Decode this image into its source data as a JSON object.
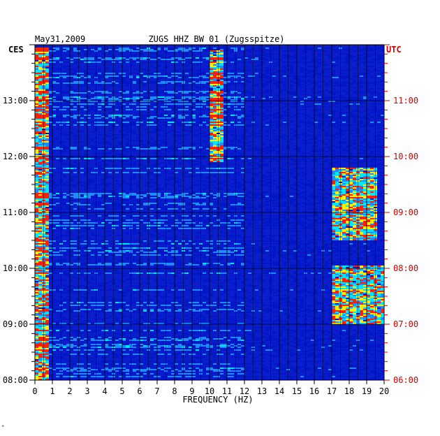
{
  "chart_data": {
    "type": "heatmap",
    "title": "ZUGS HHZ BW 01 (Zugsspitze)",
    "date": "May31,2009",
    "xlabel": "FREQUENCY (HZ)",
    "left_axis_label": "CES",
    "right_axis_label": "UTC",
    "xlim": [
      0,
      20
    ],
    "x_ticks": [
      "0",
      "1",
      "2",
      "3",
      "4",
      "5",
      "6",
      "7",
      "8",
      "9",
      "10",
      "11",
      "12",
      "13",
      "14",
      "15",
      "16",
      "17",
      "18",
      "19",
      "20"
    ],
    "left_ticks": [
      {
        "t": 13,
        "label": "13:00"
      },
      {
        "t": 12,
        "label": "12:00"
      },
      {
        "t": 11,
        "label": "11:00"
      },
      {
        "t": 10,
        "label": "10:00"
      },
      {
        "t": 9,
        "label": "09:00"
      },
      {
        "t": 8,
        "label": "08:00"
      }
    ],
    "right_ticks": [
      {
        "t": 13,
        "label": "11:00"
      },
      {
        "t": 12,
        "label": "10:00"
      },
      {
        "t": 11,
        "label": "09:00"
      },
      {
        "t": 10,
        "label": "08:00"
      },
      {
        "t": 9,
        "label": "07:00"
      },
      {
        "t": 8,
        "label": "06:00"
      }
    ],
    "ylim_local_hours": [
      8.0,
      14.0
    ],
    "colors": {
      "background": "#0a1ecc",
      "low": "#0018c8",
      "mid": "#1e8cff",
      "high": "#00e6ff",
      "peak": "#ffee00",
      "max": "#ff2000",
      "grid": "#000000",
      "utc_text": "#d00000"
    },
    "energy_bands": [
      {
        "f_min": 10.0,
        "f_max": 10.8,
        "t_min": 11.9,
        "t_max": 13.9
      },
      {
        "f_min": 17.0,
        "f_max": 19.6,
        "t_min": 10.5,
        "t_max": 11.8
      },
      {
        "f_min": 17.0,
        "f_max": 20.0,
        "t_min": 9.0,
        "t_max": 10.05
      },
      {
        "f_min": 0.0,
        "f_max": 0.8,
        "t_min": 8.0,
        "t_max": 13.95
      }
    ]
  },
  "footer_mark": "*"
}
